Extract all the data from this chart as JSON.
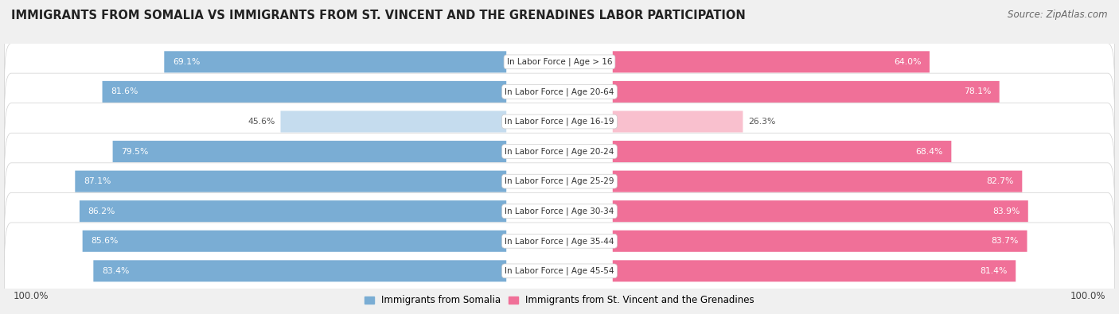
{
  "title": "IMMIGRANTS FROM SOMALIA VS IMMIGRANTS FROM ST. VINCENT AND THE GRENADINES LABOR PARTICIPATION",
  "source": "Source: ZipAtlas.com",
  "categories": [
    "In Labor Force | Age > 16",
    "In Labor Force | Age 20-64",
    "In Labor Force | Age 16-19",
    "In Labor Force | Age 20-24",
    "In Labor Force | Age 25-29",
    "In Labor Force | Age 30-34",
    "In Labor Force | Age 35-44",
    "In Labor Force | Age 45-54"
  ],
  "somalia_values": [
    69.1,
    81.6,
    45.6,
    79.5,
    87.1,
    86.2,
    85.6,
    83.4
  ],
  "grenadines_values": [
    64.0,
    78.1,
    26.3,
    68.4,
    82.7,
    83.9,
    83.7,
    81.4
  ],
  "somalia_color": "#7aadd4",
  "somalia_color_light": "#c5dcee",
  "grenadines_color": "#f07098",
  "grenadines_color_light": "#f9c0ce",
  "label_somalia": "Immigrants from Somalia",
  "label_grenadines": "Immigrants from St. Vincent and the Grenadines",
  "bg_color": "#f0f0f0",
  "footer_label": "100.0%",
  "title_fontsize": 10.5,
  "source_fontsize": 8.5,
  "value_fontsize": 7.8,
  "cat_fontsize": 7.5,
  "legend_fontsize": 8.5
}
